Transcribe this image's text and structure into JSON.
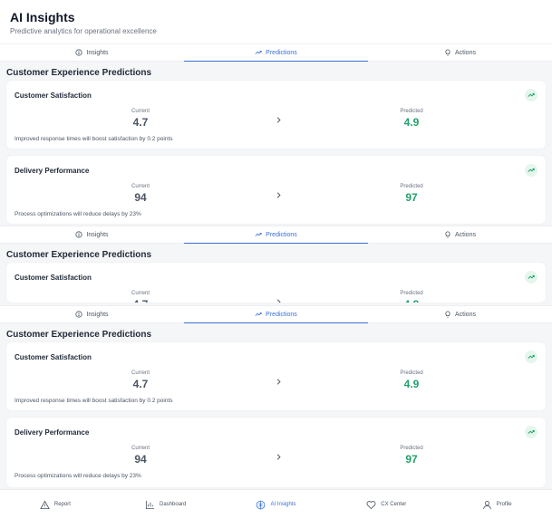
{
  "header": {
    "title": "AI Insights",
    "subtitle": "Predictive analytics for operational excellence"
  },
  "tabs": [
    {
      "label": "Insights",
      "icon": "lightbulb-circle-icon",
      "active": false
    },
    {
      "label": "Predictions",
      "icon": "trending-up-icon",
      "active": true
    },
    {
      "label": "Actions",
      "icon": "bulb-icon",
      "active": false
    }
  ],
  "section": {
    "title": "Customer Experience Predictions"
  },
  "predictions": [
    {
      "title": "Customer Satisfaction",
      "current_label": "Current",
      "current": "4.7",
      "predicted_label": "Predicted",
      "predicted": "4.9",
      "description": "Improved response times will boost satisfaction by 0.2 points"
    },
    {
      "title": "Delivery Performance",
      "current_label": "Current",
      "current": "94",
      "predicted_label": "Predicted",
      "predicted": "97",
      "description": "Process optimizations will reduce delays by 23%"
    }
  ],
  "colors": {
    "accent": "#3b6fd4",
    "positive": "#22a06b"
  },
  "nav": [
    {
      "label": "Report",
      "icon": "warning-triangle-icon",
      "active": false
    },
    {
      "label": "Dashboard",
      "icon": "bar-chart-icon",
      "active": false
    },
    {
      "label": "AI Insights",
      "icon": "brain-icon",
      "active": true
    },
    {
      "label": "CX Center",
      "icon": "heart-icon",
      "active": false
    },
    {
      "label": "Profile",
      "icon": "user-icon",
      "active": false
    }
  ]
}
